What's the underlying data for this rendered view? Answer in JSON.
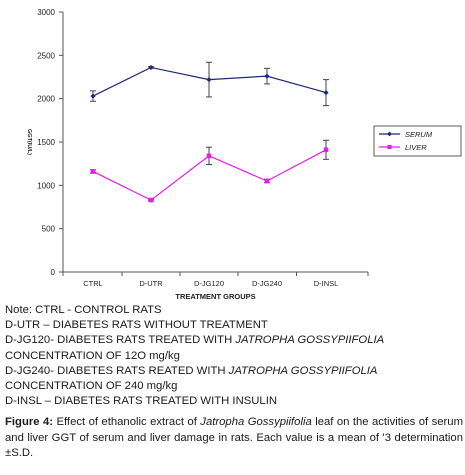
{
  "chart_data": {
    "type": "line",
    "categories": [
      "CTRL",
      "D-UTR",
      "D-JG120",
      "D-JG240",
      "D-INSL"
    ],
    "series": [
      {
        "name": "SERUM",
        "values": [
          2030,
          2360,
          2220,
          2260,
          2070
        ],
        "errors": [
          60,
          10,
          200,
          90,
          150
        ],
        "color": "#1f2a78"
      },
      {
        "name": "LIVER",
        "values": [
          1160,
          830,
          1340,
          1050,
          1410
        ],
        "errors": [
          20,
          10,
          100,
          20,
          110
        ],
        "color": "#e61ee6"
      }
    ],
    "xlabel": "TREATMENT GROUPS",
    "ylabel": "GGT(IU/L)",
    "ylim": [
      0,
      3000
    ],
    "yticks": [
      "0",
      "500",
      "1000",
      "1500",
      "2000",
      "2500",
      "3000"
    ],
    "legend_position": "right",
    "grid": false
  },
  "note": {
    "lines": [
      "Note: CTRL - CONTROL RATS",
      "D-UTR – DIABETES RATS WITHOUT TREATMENT"
    ],
    "jg120_pre": "D-JG120- DIABETES RATS TREATED WITH ",
    "jg120_em": "JATROPHA GOSSYPIIFOLIA",
    "jg120_conc": "CONCENTRATION OF 12O mg/kg",
    "jg240_pre": "D-JG240- DIABETES RATS REATED WITH ",
    "jg240_em": "JATROPHA GOSSYPIIFOLIA",
    "jg240_conc": "CONCENTRATION OF 240 mg/kg",
    "insl": "D-INSL – DIABETES RATS TREATED WITH INSULIN"
  },
  "figure_caption": {
    "label": "Figure 4:",
    "text1": " Effect of ethanolic extract of ",
    "species": "Jatropha Gossypiifolia",
    "text2": " leaf on the activities of serum and liver GGT of serum and liver damage in rats. Each value is a mean of '3 determination ±S.D."
  }
}
